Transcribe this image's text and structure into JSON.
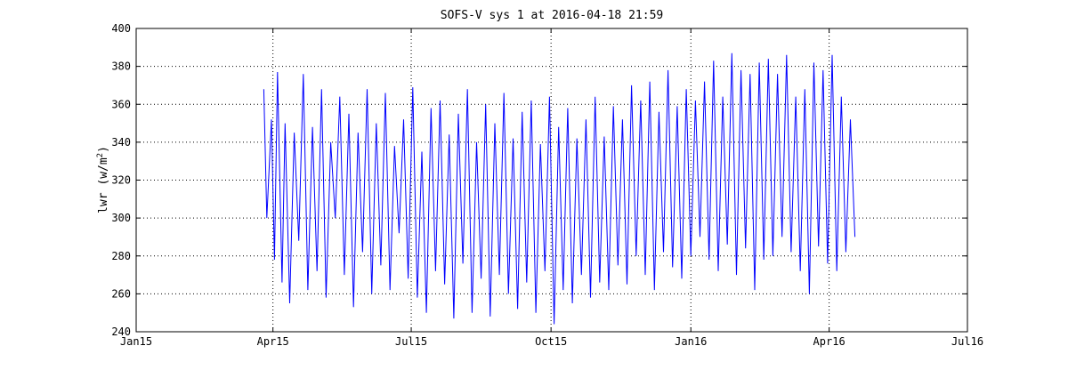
{
  "chart_data": {
    "type": "line",
    "title": "SOFS-V sys 1 at 2016-04-18 21:59",
    "ylabel_main": "lwr (w/m",
    "ylabel_sup": "2",
    "ylabel_close": ")",
    "xlabel": "",
    "x_axis_kind": "date",
    "xlim": [
      "2015-01-01",
      "2016-07-01"
    ],
    "ylim": [
      240,
      400
    ],
    "x_ticks": [
      {
        "date": "2015-01-01",
        "label": "Jan15"
      },
      {
        "date": "2015-04-01",
        "label": "Apr15"
      },
      {
        "date": "2015-07-01",
        "label": "Jul15"
      },
      {
        "date": "2015-10-01",
        "label": "Oct15"
      },
      {
        "date": "2016-01-01",
        "label": "Jan16"
      },
      {
        "date": "2016-04-01",
        "label": "Apr16"
      },
      {
        "date": "2016-07-01",
        "label": "Jul16"
      }
    ],
    "y_ticks": [
      240,
      260,
      280,
      300,
      320,
      340,
      360,
      380,
      400
    ],
    "grid": true,
    "grid_style": "dotted",
    "colors": {
      "series": "#0000ff",
      "axes": "#000000",
      "background": "#ffffff"
    },
    "series": [
      {
        "x": [
          "2015-03-26",
          "2015-03-28",
          "2015-03-31",
          "2015-04-02",
          "2015-04-04",
          "2015-04-07",
          "2015-04-09",
          "2015-04-12",
          "2015-04-15",
          "2015-04-18",
          "2015-04-21",
          "2015-04-24",
          "2015-04-27",
          "2015-04-30",
          "2015-05-03",
          "2015-05-06",
          "2015-05-09",
          "2015-05-12",
          "2015-05-15",
          "2015-05-18",
          "2015-05-21",
          "2015-05-24",
          "2015-05-27",
          "2015-05-30",
          "2015-06-02",
          "2015-06-05",
          "2015-06-08",
          "2015-06-11",
          "2015-06-14",
          "2015-06-17",
          "2015-06-20",
          "2015-06-23",
          "2015-06-26",
          "2015-06-29",
          "2015-07-02",
          "2015-07-05",
          "2015-07-08",
          "2015-07-11",
          "2015-07-14",
          "2015-07-17",
          "2015-07-20",
          "2015-07-23",
          "2015-07-26",
          "2015-07-29",
          "2015-08-01",
          "2015-08-04",
          "2015-08-07",
          "2015-08-10",
          "2015-08-13",
          "2015-08-16",
          "2015-08-19",
          "2015-08-22",
          "2015-08-25",
          "2015-08-28",
          "2015-08-31",
          "2015-09-03",
          "2015-09-06",
          "2015-09-09",
          "2015-09-12",
          "2015-09-15",
          "2015-09-18",
          "2015-09-21",
          "2015-09-24",
          "2015-09-27",
          "2015-09-30",
          "2015-10-03",
          "2015-10-06",
          "2015-10-09",
          "2015-10-12",
          "2015-10-15",
          "2015-10-18",
          "2015-10-21",
          "2015-10-24",
          "2015-10-27",
          "2015-10-30",
          "2015-11-02",
          "2015-11-05",
          "2015-11-08",
          "2015-11-11",
          "2015-11-14",
          "2015-11-17",
          "2015-11-20",
          "2015-11-23",
          "2015-11-26",
          "2015-11-29",
          "2015-12-02",
          "2015-12-05",
          "2015-12-08",
          "2015-12-11",
          "2015-12-14",
          "2015-12-17",
          "2015-12-20",
          "2015-12-23",
          "2015-12-26",
          "2015-12-29",
          "2016-01-01",
          "2016-01-04",
          "2016-01-07",
          "2016-01-10",
          "2016-01-13",
          "2016-01-16",
          "2016-01-19",
          "2016-01-22",
          "2016-01-25",
          "2016-01-28",
          "2016-01-31",
          "2016-02-03",
          "2016-02-06",
          "2016-02-09",
          "2016-02-12",
          "2016-02-15",
          "2016-02-18",
          "2016-02-21",
          "2016-02-24",
          "2016-02-27",
          "2016-03-01",
          "2016-03-04",
          "2016-03-07",
          "2016-03-10",
          "2016-03-13",
          "2016-03-16",
          "2016-03-19",
          "2016-03-22",
          "2016-03-25",
          "2016-03-28",
          "2016-03-31",
          "2016-04-03",
          "2016-04-06",
          "2016-04-09",
          "2016-04-12",
          "2016-04-15",
          "2016-04-18"
        ],
        "y": [
          368,
          300,
          352,
          278,
          377,
          266,
          350,
          255,
          345,
          288,
          376,
          262,
          348,
          272,
          368,
          258,
          340,
          300,
          364,
          270,
          355,
          253,
          345,
          282,
          368,
          260,
          350,
          275,
          366,
          262,
          338,
          292,
          352,
          268,
          369,
          258,
          335,
          250,
          358,
          272,
          362,
          265,
          344,
          247,
          355,
          276,
          368,
          250,
          340,
          268,
          360,
          248,
          350,
          270,
          366,
          260,
          342,
          252,
          356,
          266,
          362,
          250,
          339,
          272,
          364,
          244,
          348,
          262,
          358,
          255,
          342,
          270,
          352,
          258,
          364,
          266,
          343,
          262,
          359,
          275,
          352,
          265,
          370,
          280,
          362,
          270,
          372,
          262,
          356,
          282,
          378,
          274,
          359,
          268,
          368,
          280,
          362,
          290,
          372,
          278,
          383,
          272,
          364,
          286,
          387,
          270,
          378,
          284,
          376,
          262,
          382,
          278,
          384,
          280,
          376,
          290,
          386,
          282,
          364,
          272,
          368,
          260,
          382,
          285,
          378,
          276,
          386,
          272,
          364,
          282,
          352,
          290
        ]
      }
    ]
  }
}
